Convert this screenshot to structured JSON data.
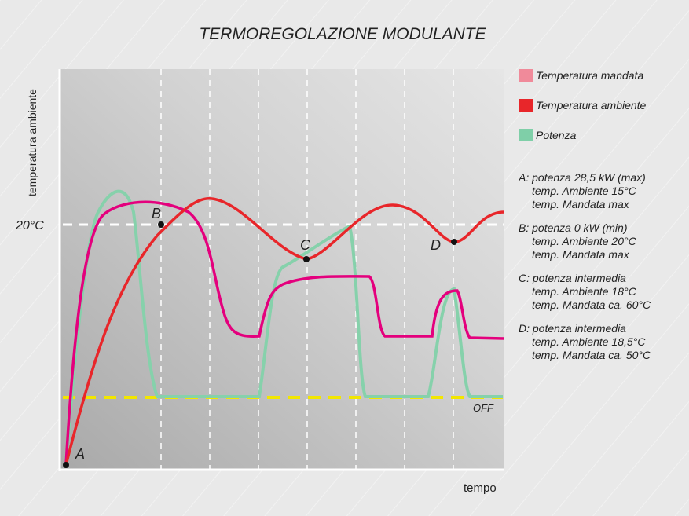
{
  "title": "TERMOREGOLAZIONE MODULANTE",
  "y_axis_label": "temperatura ambiente",
  "x_axis_label": "tempo",
  "reference_label": "20°C",
  "off_label": "OFF",
  "points": [
    "A",
    "B",
    "C",
    "D"
  ],
  "legend": [
    "Temperatura mandata",
    "Temperatura ambiente",
    "Potenza"
  ],
  "notes": [
    [
      "A: potenza 28,5 kW (max)",
      "temp. Ambiente 15°C",
      "temp. Mandata max"
    ],
    [
      "B: potenza 0 kW (min)",
      "temp. Ambiente 20°C",
      "temp. Mandata max"
    ],
    [
      "C: potenza intermedia",
      "temp. Ambiente 18°C",
      "temp. Mandata ca. 60°C"
    ],
    [
      "D: potenza intermedia",
      "temp. Ambiente 18,5°C",
      "temp. Mandata ca. 50°C"
    ]
  ]
}
